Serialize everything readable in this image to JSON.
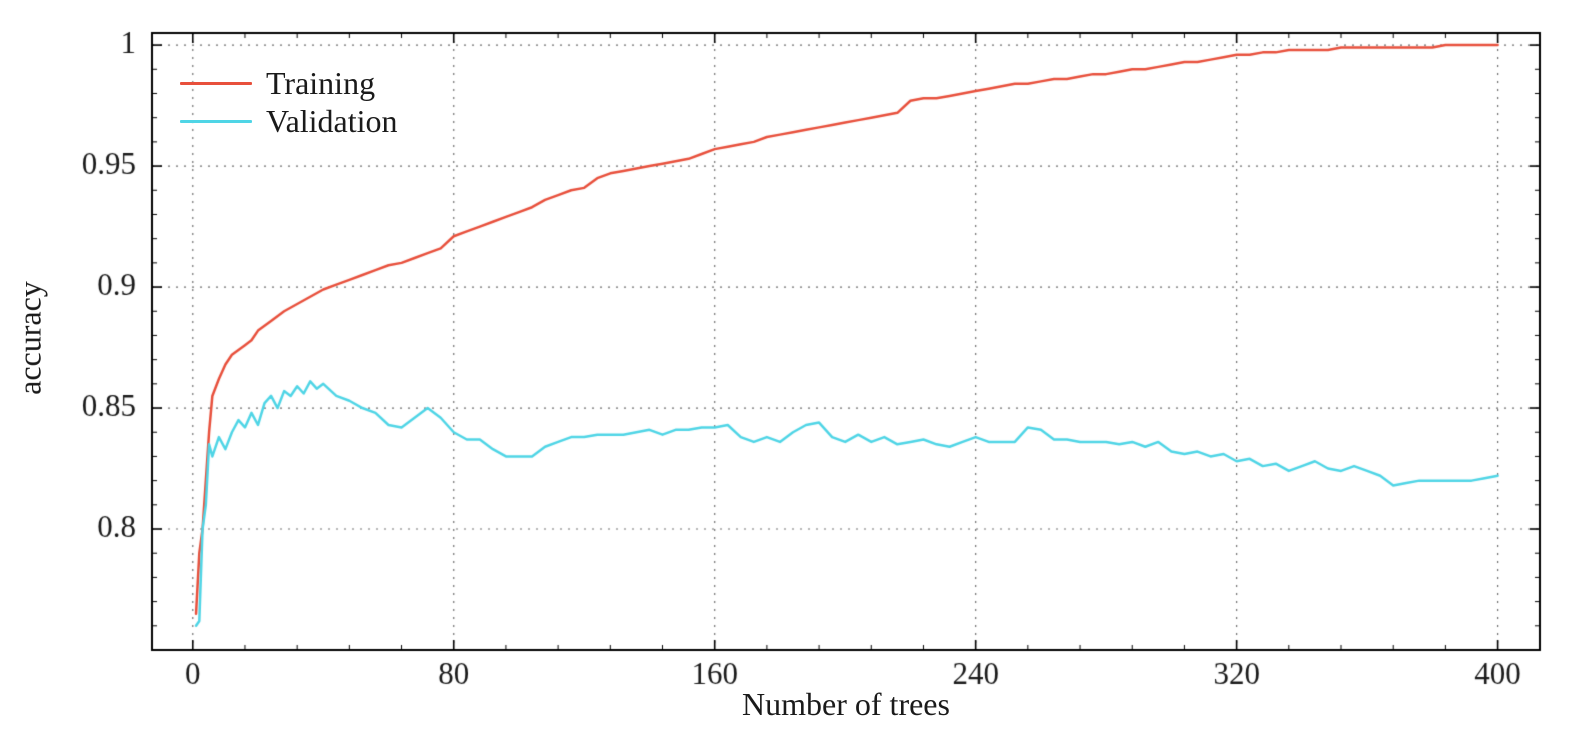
{
  "figure": {
    "background": "#ffffff",
    "frame_color": "#000000",
    "grid_color": "#6e6e6e",
    "tick_color": "#000000",
    "tick_label_color": "#1a1a1a"
  },
  "chart_data": {
    "type": "line",
    "title": "",
    "xlabel": "Number of trees",
    "ylabel": "accuracy",
    "xlim": [
      -12.5,
      413
    ],
    "ylim": [
      0.75,
      1.005
    ],
    "xticks": [
      0,
      80,
      160,
      240,
      320,
      400
    ],
    "xtick_labels": [
      "0",
      "80",
      "160",
      "240",
      "320",
      "400"
    ],
    "x_minor_step": 16,
    "yticks": [
      0.8,
      0.85,
      0.9,
      0.95,
      1.0
    ],
    "ytick_labels": [
      "0.8",
      "0.85",
      "0.9",
      "0.95",
      "1"
    ],
    "y_minor_step": 0.01,
    "grid": true,
    "grid_style": "dotted",
    "legend_position": "top-left",
    "series": [
      {
        "name": "Training",
        "color": "#e8503c",
        "x": [
          1,
          2,
          3,
          4,
          5,
          6,
          8,
          10,
          12,
          14,
          16,
          18,
          20,
          24,
          28,
          32,
          36,
          40,
          44,
          48,
          52,
          56,
          60,
          64,
          68,
          72,
          76,
          80,
          84,
          88,
          92,
          96,
          100,
          104,
          108,
          112,
          116,
          120,
          124,
          128,
          132,
          136,
          140,
          144,
          148,
          152,
          156,
          160,
          164,
          168,
          172,
          176,
          180,
          184,
          188,
          192,
          196,
          200,
          204,
          208,
          212,
          216,
          220,
          224,
          228,
          232,
          236,
          240,
          244,
          248,
          252,
          256,
          260,
          264,
          268,
          272,
          276,
          280,
          284,
          288,
          292,
          296,
          300,
          304,
          308,
          312,
          316,
          320,
          324,
          328,
          332,
          336,
          340,
          344,
          348,
          352,
          356,
          360,
          364,
          368,
          372,
          376,
          380,
          384,
          388,
          392,
          396,
          400
        ],
        "y": [
          0.765,
          0.79,
          0.8,
          0.82,
          0.84,
          0.855,
          0.862,
          0.868,
          0.872,
          0.874,
          0.876,
          0.878,
          0.882,
          0.886,
          0.89,
          0.893,
          0.896,
          0.899,
          0.901,
          0.903,
          0.905,
          0.907,
          0.909,
          0.91,
          0.912,
          0.914,
          0.916,
          0.921,
          0.923,
          0.925,
          0.927,
          0.929,
          0.931,
          0.933,
          0.936,
          0.938,
          0.94,
          0.941,
          0.945,
          0.947,
          0.948,
          0.949,
          0.95,
          0.951,
          0.952,
          0.953,
          0.955,
          0.957,
          0.958,
          0.959,
          0.96,
          0.962,
          0.963,
          0.964,
          0.965,
          0.966,
          0.967,
          0.968,
          0.969,
          0.97,
          0.971,
          0.972,
          0.977,
          0.978,
          0.978,
          0.979,
          0.98,
          0.981,
          0.982,
          0.983,
          0.984,
          0.984,
          0.985,
          0.986,
          0.986,
          0.987,
          0.988,
          0.988,
          0.989,
          0.99,
          0.99,
          0.991,
          0.992,
          0.993,
          0.993,
          0.994,
          0.995,
          0.996,
          0.996,
          0.997,
          0.997,
          0.998,
          0.998,
          0.998,
          0.998,
          0.999,
          0.999,
          0.999,
          0.999,
          0.999,
          0.999,
          0.999,
          0.999,
          1.0,
          1.0,
          1.0,
          1.0,
          1.0
        ]
      },
      {
        "name": "Validation",
        "color": "#4fd5e6",
        "x": [
          1,
          2,
          3,
          4,
          5,
          6,
          8,
          10,
          12,
          14,
          16,
          18,
          20,
          22,
          24,
          26,
          28,
          30,
          32,
          34,
          36,
          38,
          40,
          44,
          48,
          52,
          56,
          60,
          64,
          68,
          72,
          76,
          80,
          84,
          88,
          92,
          96,
          100,
          104,
          108,
          112,
          116,
          120,
          124,
          128,
          132,
          136,
          140,
          144,
          148,
          152,
          156,
          160,
          164,
          168,
          172,
          176,
          180,
          184,
          188,
          192,
          196,
          200,
          204,
          208,
          212,
          216,
          220,
          224,
          228,
          232,
          236,
          240,
          244,
          248,
          252,
          256,
          260,
          264,
          268,
          272,
          276,
          280,
          284,
          288,
          292,
          296,
          300,
          304,
          308,
          312,
          316,
          320,
          324,
          328,
          332,
          336,
          340,
          344,
          348,
          352,
          356,
          360,
          364,
          368,
          372,
          376,
          380,
          384,
          388,
          392,
          396,
          400
        ],
        "y": [
          0.76,
          0.762,
          0.8,
          0.81,
          0.835,
          0.83,
          0.838,
          0.833,
          0.84,
          0.845,
          0.842,
          0.848,
          0.843,
          0.852,
          0.855,
          0.85,
          0.857,
          0.855,
          0.859,
          0.856,
          0.861,
          0.858,
          0.86,
          0.855,
          0.853,
          0.85,
          0.848,
          0.843,
          0.842,
          0.846,
          0.85,
          0.846,
          0.84,
          0.837,
          0.837,
          0.833,
          0.83,
          0.83,
          0.83,
          0.834,
          0.836,
          0.838,
          0.838,
          0.839,
          0.839,
          0.839,
          0.84,
          0.841,
          0.839,
          0.841,
          0.841,
          0.842,
          0.842,
          0.843,
          0.838,
          0.836,
          0.838,
          0.836,
          0.84,
          0.843,
          0.844,
          0.838,
          0.836,
          0.839,
          0.836,
          0.838,
          0.835,
          0.836,
          0.837,
          0.835,
          0.834,
          0.836,
          0.838,
          0.836,
          0.836,
          0.836,
          0.842,
          0.841,
          0.837,
          0.837,
          0.836,
          0.836,
          0.836,
          0.835,
          0.836,
          0.834,
          0.836,
          0.832,
          0.831,
          0.832,
          0.83,
          0.831,
          0.828,
          0.829,
          0.826,
          0.827,
          0.824,
          0.826,
          0.828,
          0.825,
          0.824,
          0.826,
          0.824,
          0.822,
          0.818,
          0.819,
          0.82,
          0.82,
          0.82,
          0.82,
          0.82,
          0.821,
          0.822
        ]
      }
    ]
  }
}
